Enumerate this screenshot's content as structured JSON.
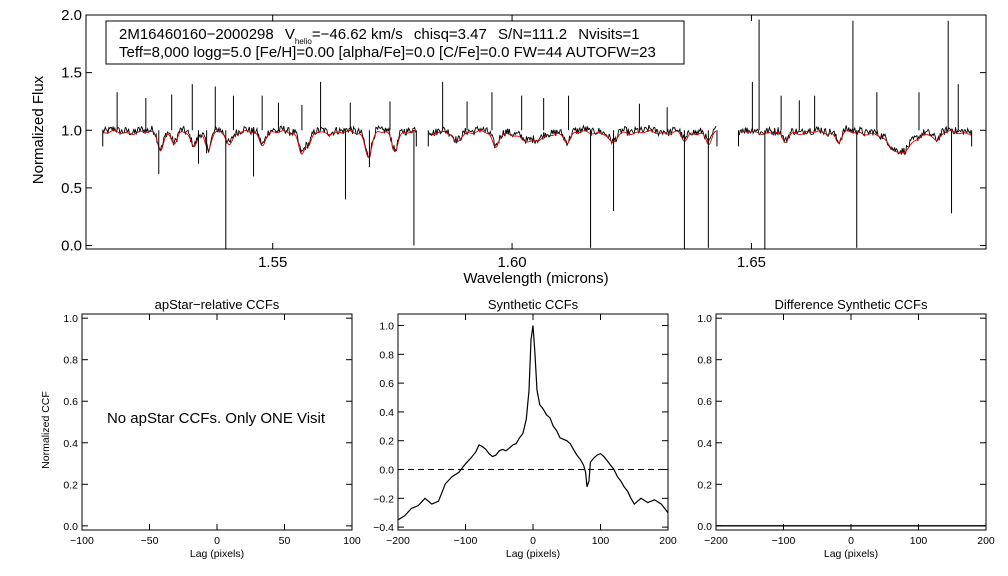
{
  "chart_data": [
    {
      "type": "line",
      "id": "spectrum",
      "xlabel": "Wavelength (microns)",
      "ylabel": "Normalized Flux",
      "xlim": [
        1.511,
        1.699
      ],
      "ylim": [
        -0.03,
        2.0
      ],
      "xticks": [
        1.55,
        1.6,
        1.65
      ],
      "xtick_labels": [
        "1.55",
        "1.60",
        "1.65"
      ],
      "yticks": [
        0.0,
        0.5,
        1.0,
        1.5,
        2.0
      ],
      "ytick_labels": [
        "0.0",
        "0.5",
        "1.0",
        "1.5",
        "2.0"
      ],
      "annotation": {
        "star_id": "2M16460160−2000298",
        "vhelio_label": "V",
        "vhelio_sub": "helio",
        "vhelio_value": "=−46.62 km/s",
        "chisq": "chisq=3.47",
        "snr": "S/N=111.2",
        "nvisits": "Nvisits=1",
        "line2": "Teff=8,000 logg=5.0 [Fe/H]=0.00 [alpha/Fe]=0.0 [C/Fe]=0.0 FW=44 AUTOFW=23"
      },
      "segments": [
        [
          1.5145,
          1.58
        ],
        [
          1.5825,
          1.6428
        ],
        [
          1.6473,
          1.696
        ]
      ],
      "baseline": 1.0,
      "series": [
        {
          "name": "Observed",
          "color": "#000000"
        },
        {
          "name": "Synthetic",
          "color": "#e00000"
        }
      ],
      "absorption_lines_synthetic": [
        {
          "x": 1.5266,
          "depth": 0.14,
          "w": 0.0006
        },
        {
          "x": 1.5295,
          "depth": 0.1,
          "w": 0.0006
        },
        {
          "x": 1.5335,
          "depth": 0.12,
          "w": 0.0006
        },
        {
          "x": 1.5365,
          "depth": 0.16,
          "w": 0.0006
        },
        {
          "x": 1.541,
          "depth": 0.1,
          "w": 0.0006
        },
        {
          "x": 1.5478,
          "depth": 0.1,
          "w": 0.0006
        },
        {
          "x": 1.556,
          "depth": 0.17,
          "w": 0.0006
        },
        {
          "x": 1.5575,
          "depth": 0.12,
          "w": 0.0006
        },
        {
          "x": 1.57,
          "depth": 0.2,
          "w": 0.0007
        },
        {
          "x": 1.5755,
          "depth": 0.15,
          "w": 0.0006
        },
        {
          "x": 1.5883,
          "depth": 0.08,
          "w": 0.0008
        },
        {
          "x": 1.5965,
          "depth": 0.12,
          "w": 0.0006
        },
        {
          "x": 1.604,
          "depth": 0.07,
          "w": 0.003
        },
        {
          "x": 1.6116,
          "depth": 0.08,
          "w": 0.0006
        },
        {
          "x": 1.621,
          "depth": 0.1,
          "w": 0.0008
        },
        {
          "x": 1.6361,
          "depth": 0.08,
          "w": 0.0006
        },
        {
          "x": 1.6411,
          "depth": 0.1,
          "w": 0.0006
        },
        {
          "x": 1.657,
          "depth": 0.09,
          "w": 0.0006
        },
        {
          "x": 1.6682,
          "depth": 0.08,
          "w": 0.0006
        },
        {
          "x": 1.6811,
          "depth": 0.17,
          "w": 0.0025
        },
        {
          "x": 1.6888,
          "depth": 0.07,
          "w": 0.0006
        }
      ],
      "spikes_observed": [
        {
          "x": 1.5175,
          "y": 1.33
        },
        {
          "x": 1.5235,
          "y": 1.28
        },
        {
          "x": 1.5262,
          "y": 0.62
        },
        {
          "x": 1.5289,
          "y": 1.31
        },
        {
          "x": 1.5332,
          "y": 1.4
        },
        {
          "x": 1.5345,
          "y": 0.71
        },
        {
          "x": 1.5362,
          "y": 0.8
        },
        {
          "x": 1.538,
          "y": 1.38
        },
        {
          "x": 1.5402,
          "y": -0.03
        },
        {
          "x": 1.5418,
          "y": 1.3
        },
        {
          "x": 1.546,
          "y": 0.6
        },
        {
          "x": 1.5478,
          "y": 1.3
        },
        {
          "x": 1.5512,
          "y": 1.24
        },
        {
          "x": 1.5561,
          "y": 1.22
        },
        {
          "x": 1.56,
          "y": 1.42
        },
        {
          "x": 1.5652,
          "y": 0.4
        },
        {
          "x": 1.5662,
          "y": 1.24
        },
        {
          "x": 1.5702,
          "y": 0.68
        },
        {
          "x": 1.5745,
          "y": 1.25
        },
        {
          "x": 1.5795,
          "y": 0.0
        },
        {
          "x": 1.5855,
          "y": 1.42
        },
        {
          "x": 1.5906,
          "y": 1.25
        },
        {
          "x": 1.5958,
          "y": 1.33
        },
        {
          "x": 1.602,
          "y": 1.3
        },
        {
          "x": 1.6066,
          "y": 1.28
        },
        {
          "x": 1.6118,
          "y": 1.3
        },
        {
          "x": 1.6164,
          "y": -0.02
        },
        {
          "x": 1.6212,
          "y": 0.3
        },
        {
          "x": 1.6266,
          "y": 1.23
        },
        {
          "x": 1.6324,
          "y": 1.2
        },
        {
          "x": 1.636,
          "y": -0.03
        },
        {
          "x": 1.641,
          "y": -0.02
        },
        {
          "x": 1.6502,
          "y": 1.42
        },
        {
          "x": 1.6516,
          "y": 1.96
        },
        {
          "x": 1.6528,
          "y": -0.03
        },
        {
          "x": 1.6562,
          "y": 1.3
        },
        {
          "x": 1.66,
          "y": 1.26
        },
        {
          "x": 1.6632,
          "y": 1.3
        },
        {
          "x": 1.6712,
          "y": 1.95
        },
        {
          "x": 1.672,
          "y": -0.02
        },
        {
          "x": 1.6762,
          "y": 1.33
        },
        {
          "x": 1.685,
          "y": 1.33
        },
        {
          "x": 1.6911,
          "y": 1.95
        },
        {
          "x": 1.6918,
          "y": 0.28
        },
        {
          "x": 1.6932,
          "y": 1.4
        }
      ]
    },
    {
      "type": "line",
      "id": "apstar_ccf",
      "title": "apStar−relative CCFs",
      "xlabel": "Lag (pixels)",
      "ylabel": "Normalized CCF",
      "xlim": [
        -100,
        100
      ],
      "ylim": [
        -0.02,
        1.02
      ],
      "xticks": [
        -100,
        -50,
        0,
        50,
        100
      ],
      "xtick_labels": [
        "−100",
        "−50",
        "0",
        "50",
        "100"
      ],
      "yticks": [
        0.0,
        0.2,
        0.4,
        0.6,
        0.8,
        1.0
      ],
      "ytick_labels": [
        "0.0",
        "0.2",
        "0.4",
        "0.6",
        "0.8",
        "1.0"
      ],
      "message": "No apStar CCFs.  Only ONE Visit",
      "series": []
    },
    {
      "type": "line",
      "id": "synthetic_ccf",
      "title": "Synthetic CCFs",
      "xlabel": "Lag (pixels)",
      "xlim": [
        -200,
        200
      ],
      "ylim": [
        -0.42,
        1.08
      ],
      "xticks": [
        -200,
        -100,
        0,
        100,
        200
      ],
      "xtick_labels": [
        "−200",
        "−100",
        "0",
        "100",
        "200"
      ],
      "yticks": [
        -0.4,
        -0.2,
        0.0,
        0.2,
        0.4,
        0.6,
        0.8,
        1.0
      ],
      "ytick_labels": [
        "−0.4",
        "−0.2",
        "0.0",
        "0.2",
        "0.4",
        "0.6",
        "0.8",
        "1.0"
      ],
      "zero_line": 0.0,
      "series": [
        {
          "name": "CCF",
          "x": [
            -200,
            -190,
            -180,
            -170,
            -160,
            -150,
            -140,
            -130,
            -120,
            -110,
            -100,
            -92,
            -85,
            -80,
            -75,
            -70,
            -65,
            -60,
            -55,
            -50,
            -45,
            -40,
            -35,
            -30,
            -25,
            -20,
            -15,
            -10,
            -6,
            -3,
            0,
            3,
            6,
            10,
            15,
            20,
            25,
            30,
            35,
            40,
            45,
            50,
            55,
            60,
            65,
            70,
            75,
            78,
            80,
            83,
            85,
            90,
            95,
            100,
            105,
            110,
            115,
            120,
            125,
            130,
            135,
            140,
            145,
            150,
            160,
            170,
            180,
            190,
            200
          ],
          "y": [
            -0.35,
            -0.32,
            -0.27,
            -0.25,
            -0.2,
            -0.24,
            -0.22,
            -0.1,
            -0.05,
            -0.02,
            0.04,
            0.08,
            0.12,
            0.17,
            0.16,
            0.14,
            0.11,
            0.09,
            0.1,
            0.13,
            0.14,
            0.13,
            0.15,
            0.17,
            0.18,
            0.22,
            0.25,
            0.35,
            0.55,
            0.9,
            1.0,
            0.8,
            0.55,
            0.45,
            0.42,
            0.38,
            0.36,
            0.3,
            0.27,
            0.22,
            0.21,
            0.2,
            0.18,
            0.14,
            0.1,
            0.07,
            0.03,
            -0.02,
            -0.12,
            -0.08,
            0.05,
            0.08,
            0.1,
            0.11,
            0.09,
            0.06,
            0.03,
            0.0,
            -0.05,
            -0.08,
            -0.12,
            -0.15,
            -0.2,
            -0.24,
            -0.2,
            -0.23,
            -0.21,
            -0.24,
            -0.3
          ]
        }
      ]
    },
    {
      "type": "line",
      "id": "difference_ccf",
      "title": "Difference Synthetic CCFs",
      "xlabel": "Lag (pixels)",
      "xlim": [
        -200,
        200
      ],
      "ylim": [
        -0.02,
        1.02
      ],
      "xticks": [
        -200,
        -100,
        0,
        100,
        200
      ],
      "xtick_labels": [
        "−200",
        "−100",
        "0",
        "100",
        "200"
      ],
      "yticks": [
        0.0,
        0.2,
        0.4,
        0.6,
        0.8,
        1.0
      ],
      "ytick_labels": [
        "0.0",
        "0.2",
        "0.4",
        "0.6",
        "0.8",
        "1.0"
      ],
      "series": [
        {
          "name": "Difference",
          "x": [
            -200,
            200
          ],
          "y": [
            0.0,
            0.0
          ]
        }
      ]
    }
  ]
}
